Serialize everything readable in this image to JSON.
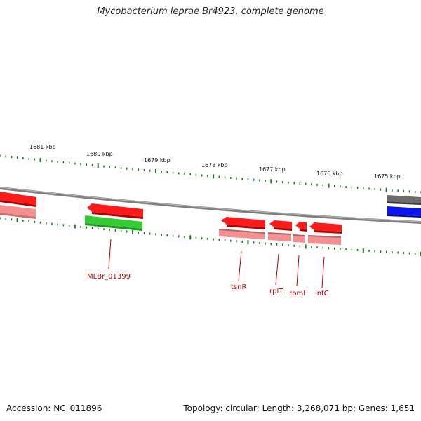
{
  "title": "Mycobacterium leprae Br4923, complete genome",
  "footer": {
    "accession": "Accession: NC_011896",
    "summary": "Topology: circular; Length: 3,268,071 bp; Genes: 1,651"
  },
  "colors": {
    "backbone": "#8c8c8c",
    "tick": "#1a7a1a",
    "gene_red": "#ff1a1a",
    "gene_pink": "#f59090",
    "gene_green": "#33cc33",
    "gene_gray": "#707070",
    "gene_blue": "#0a14f0",
    "label_red": "#b30000"
  },
  "kbp_labels": [
    "1681 kbp",
    "1680 kbp",
    "1679 kbp",
    "1678 kbp",
    "1677 kbp",
    "1676 kbp",
    "1675 kbp"
  ],
  "gene_labels": [
    "MLBr_01399",
    "tsnR",
    "rplT",
    "rpmI",
    "infC"
  ]
}
